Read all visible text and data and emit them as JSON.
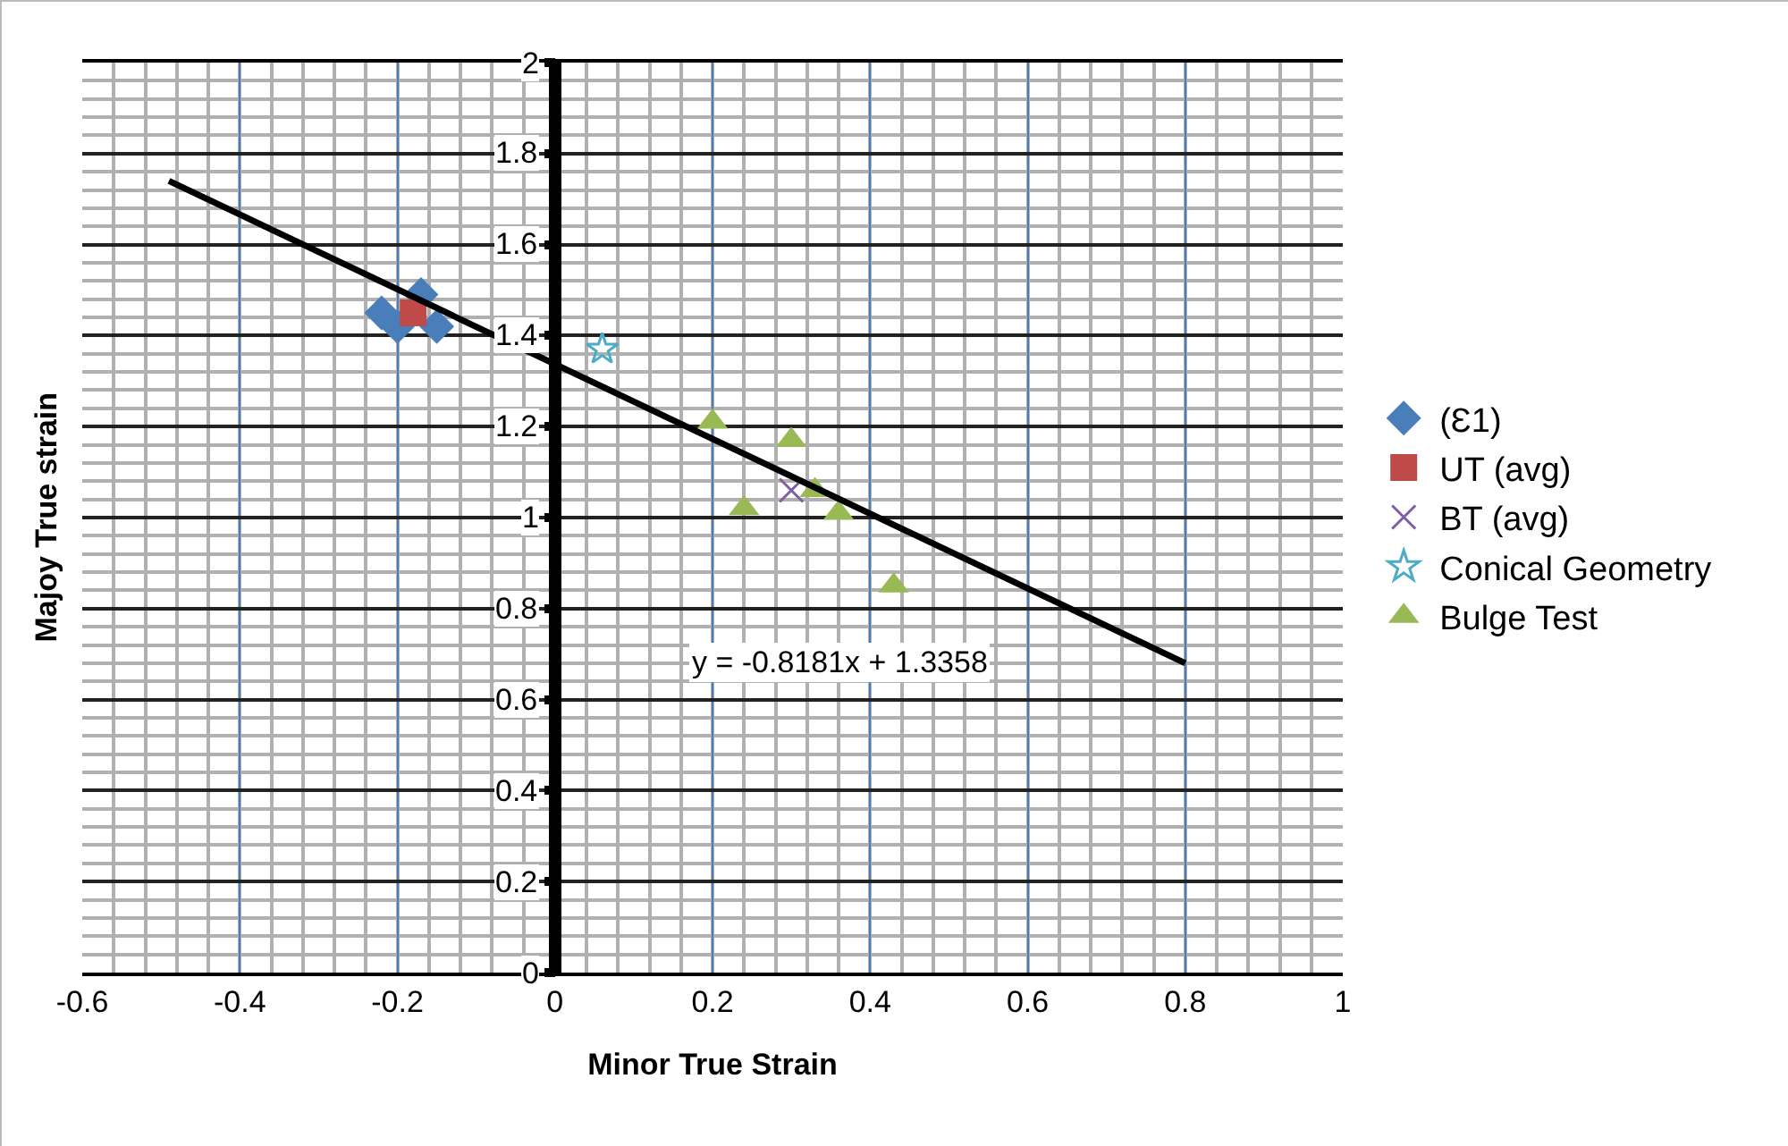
{
  "chart_data": {
    "type": "scatter",
    "xlabel": "Minor True Strain",
    "ylabel": "Majoy True strain",
    "xlim": [
      -0.6,
      1
    ],
    "xticks": [
      -0.6,
      -0.4,
      -0.2,
      0,
      0.2,
      0.4,
      0.6,
      0.8,
      1
    ],
    "ylim": [
      0,
      2
    ],
    "yticks": [
      0,
      0.2,
      0.4,
      0.6,
      0.8,
      1,
      1.2,
      1.4,
      1.6,
      1.8,
      2
    ],
    "grid": true,
    "legend": "right",
    "series": [
      {
        "name": "(Ɛ1)",
        "color": "#4a7ebb",
        "marker": "diamond",
        "x": [
          -0.22,
          -0.17,
          -0.15,
          -0.2
        ],
        "values": [
          1.45,
          1.49,
          1.42,
          1.42
        ]
      },
      {
        "name": "UT (avg)",
        "color": "#be4b48",
        "marker": "square",
        "x": [
          -0.18
        ],
        "values": [
          1.45
        ]
      },
      {
        "name": "BT (avg)",
        "color": "#7f5fa0",
        "marker": "cross",
        "x": [
          0.3
        ],
        "values": [
          1.06
        ]
      },
      {
        "name": "Conical Geometry",
        "color": "#4bacc6",
        "marker": "star",
        "x": [
          0.06
        ],
        "values": [
          1.37
        ]
      },
      {
        "name": "Bulge Test",
        "color": "#98b954",
        "marker": "triangle",
        "x": [
          0.2,
          0.3,
          0.24,
          0.33,
          0.36,
          0.43
        ],
        "values": [
          1.21,
          1.17,
          1.02,
          1.06,
          1.01,
          0.85
        ]
      },
      {
        "type": "line",
        "color": "#000000",
        "marker": "none",
        "x": [
          -0.49,
          0.8
        ],
        "values": [
          1.74,
          0.68
        ]
      }
    ],
    "annotations": [
      "y = -0.8181x + 1.3358"
    ]
  }
}
